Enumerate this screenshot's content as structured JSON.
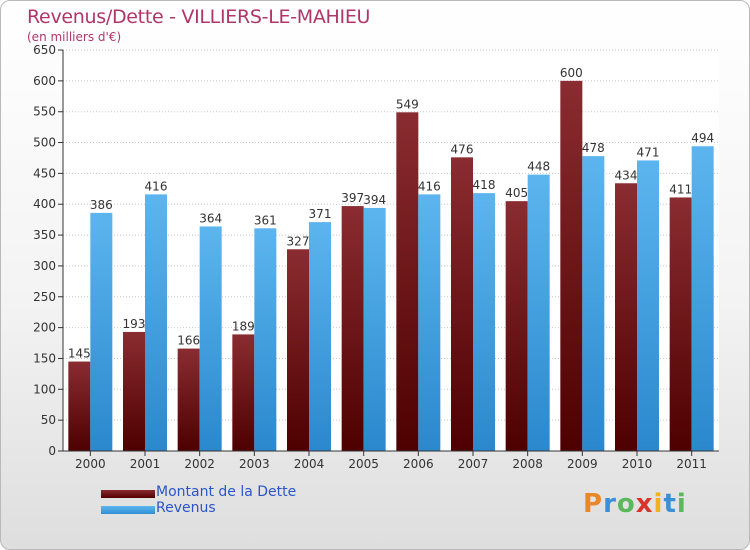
{
  "chart_data": {
    "type": "bar",
    "title": "Revenus/Dette - VILLIERS-LE-MAHIEU",
    "subtitle": "(en milliers d'€)",
    "categories": [
      "2000",
      "2001",
      "2002",
      "2003",
      "2004",
      "2005",
      "2006",
      "2007",
      "2008",
      "2009",
      "2010",
      "2011"
    ],
    "series": [
      {
        "name": "Montant de la Dette",
        "color": "#7a1c20",
        "values": [
          145,
          193,
          166,
          189,
          327,
          397,
          549,
          476,
          405,
          600,
          434,
          411
        ]
      },
      {
        "name": "Revenus",
        "color": "#3b9fe3",
        "values": [
          386,
          416,
          364,
          361,
          371,
          394,
          416,
          418,
          448,
          478,
          471,
          494
        ]
      }
    ],
    "ylim": [
      0,
      650
    ],
    "yticks": [
      0,
      50,
      100,
      150,
      200,
      250,
      300,
      350,
      400,
      450,
      500,
      550,
      600,
      650
    ],
    "grid": true,
    "legend_position": "bottom-left"
  },
  "logo": {
    "letters": [
      "P",
      "r",
      "o",
      "x",
      "i",
      "t",
      "i"
    ],
    "colors": [
      "#e8882a",
      "#3a8fd8",
      "#5cb85c",
      "#d9342b",
      "#f0b020",
      "#3a8fd8",
      "#5cb85c"
    ]
  }
}
